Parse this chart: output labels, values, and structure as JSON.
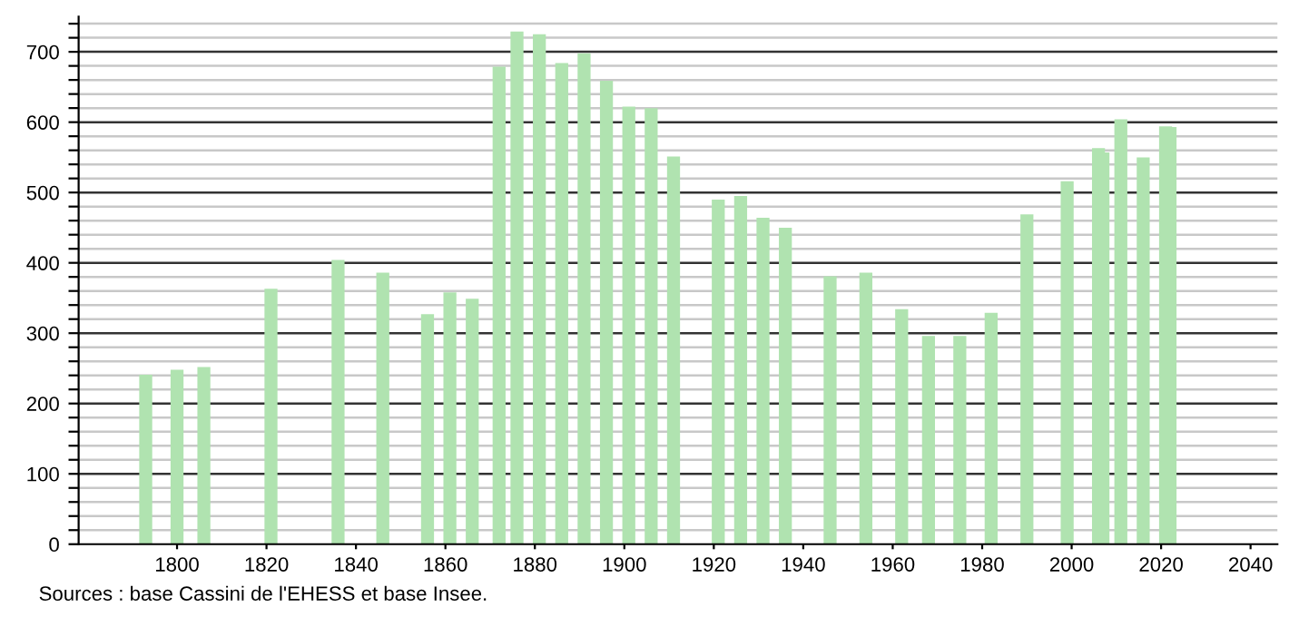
{
  "chart_data": {
    "type": "bar",
    "x": [
      1793,
      1800,
      1806,
      1821,
      1836,
      1846,
      1856,
      1861,
      1866,
      1872,
      1876,
      1881,
      1886,
      1891,
      1896,
      1901,
      1906,
      1911,
      1921,
      1926,
      1931,
      1936,
      1946,
      1954,
      1962,
      1968,
      1975,
      1982,
      1990,
      1999,
      2006,
      2007,
      2011,
      2016,
      2021,
      2022
    ],
    "values": [
      241,
      248,
      252,
      363,
      404,
      386,
      327,
      358,
      349,
      679,
      729,
      725,
      684,
      698,
      659,
      622,
      620,
      551,
      490,
      495,
      464,
      450,
      381,
      386,
      334,
      296,
      296,
      329,
      469,
      516,
      563,
      557,
      604,
      550,
      594,
      593
    ],
    "color": "#b0e3b0",
    "xlim": [
      1778,
      2046
    ],
    "xticks": [
      1800,
      1820,
      1840,
      1860,
      1880,
      1900,
      1920,
      1940,
      1960,
      1980,
      2000,
      2020,
      2040
    ],
    "ylim": [
      0,
      750
    ],
    "yticks": [
      0,
      {
        "value": 20,
        "label": null
      },
      {
        "value": 40,
        "label": null
      },
      {
        "value": 60,
        "label": null
      },
      {
        "value": 80,
        "label": null
      },
      100,
      {
        "value": 120,
        "label": null
      },
      {
        "value": 140,
        "label": null
      },
      {
        "value": 160,
        "label": null
      },
      {
        "value": 180,
        "label": null
      },
      200,
      {
        "value": 220,
        "label": null
      },
      {
        "value": 240,
        "label": null
      },
      {
        "value": 260,
        "label": null
      },
      {
        "value": 280,
        "label": null
      },
      300,
      {
        "value": 320,
        "label": null
      },
      {
        "value": 340,
        "label": null
      },
      {
        "value": 360,
        "label": null
      },
      {
        "value": 380,
        "label": null
      },
      400,
      {
        "value": 420,
        "label": null
      },
      {
        "value": 440,
        "label": null
      },
      {
        "value": 460,
        "label": null
      },
      {
        "value": 480,
        "label": null
      },
      500,
      {
        "value": 520,
        "label": null
      },
      {
        "value": 540,
        "label": null
      },
      {
        "value": 560,
        "label": null
      },
      {
        "value": 580,
        "label": null
      },
      600,
      {
        "value": 620,
        "label": null
      },
      {
        "value": 640,
        "label": null
      },
      {
        "value": 660,
        "label": null
      },
      {
        "value": 680,
        "label": null
      },
      700,
      {
        "value": 720,
        "label": null
      },
      {
        "value": 740,
        "label": null
      }
    ],
    "grid": "y",
    "annotations": [
      "Sources : base Cassini de l'EHESS et base Insee."
    ]
  }
}
